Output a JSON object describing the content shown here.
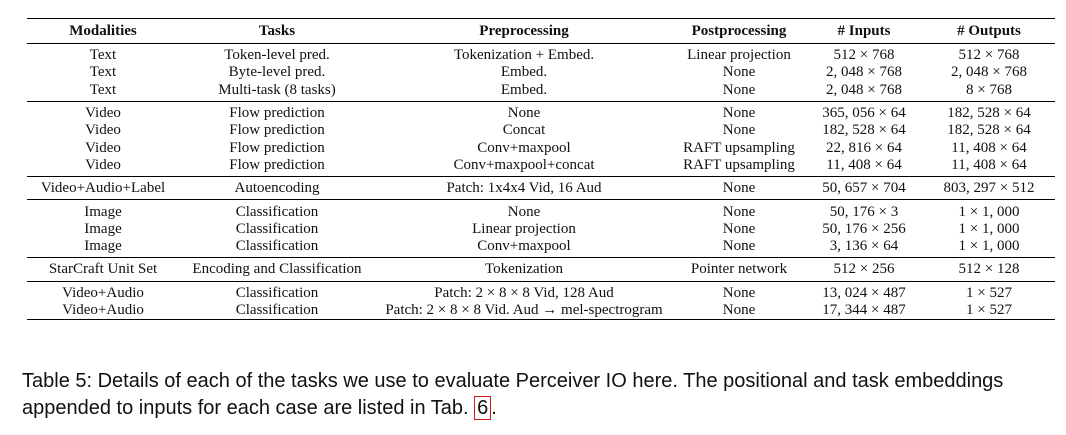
{
  "table": {
    "headers": [
      "Modalities",
      "Tasks",
      "Preprocessing",
      "Postprocessing",
      "# Inputs",
      "# Outputs"
    ],
    "groups": [
      [
        [
          "Text",
          "Token-level pred.",
          "Tokenization + Embed.",
          "Linear projection",
          "512 × 768",
          "512 × 768"
        ],
        [
          "Text",
          "Byte-level pred.",
          "Embed.",
          "None",
          "2, 048 × 768",
          "2, 048 × 768"
        ],
        [
          "Text",
          "Multi-task (8 tasks)",
          "Embed.",
          "None",
          "2, 048 × 768",
          "8 × 768"
        ]
      ],
      [
        [
          "Video",
          "Flow prediction",
          "None",
          "None",
          "365, 056 × 64",
          "182, 528 × 64"
        ],
        [
          "Video",
          "Flow prediction",
          "Concat",
          "None",
          "182, 528 × 64",
          "182, 528 × 64"
        ],
        [
          "Video",
          "Flow prediction",
          "Conv+maxpool",
          "RAFT upsampling",
          "22, 816 × 64",
          "11, 408 × 64"
        ],
        [
          "Video",
          "Flow prediction",
          "Conv+maxpool+concat",
          "RAFT upsampling",
          "11, 408 × 64",
          "11, 408 × 64"
        ]
      ],
      [
        [
          "Video+Audio+Label",
          "Autoencoding",
          "Patch: 1x4x4 Vid, 16 Aud",
          "None",
          "50, 657 × 704",
          "803, 297 × 512"
        ]
      ],
      [
        [
          "Image",
          "Classification",
          "None",
          "None",
          "50, 176 × 3",
          "1 × 1, 000"
        ],
        [
          "Image",
          "Classification",
          "Linear projection",
          "None",
          "50, 176 × 256",
          "1 × 1, 000"
        ],
        [
          "Image",
          "Classification",
          "Conv+maxpool",
          "None",
          "3, 136 × 64",
          "1 × 1, 000"
        ]
      ],
      [
        [
          "StarCraft Unit Set",
          "Encoding and Classification",
          "Tokenization",
          "Pointer network",
          "512 × 256",
          "512 × 128"
        ]
      ],
      [
        [
          "Video+Audio",
          "Classification",
          "Patch: 2 × 8 × 8 Vid, 128 Aud",
          "None",
          "13, 024 × 487",
          "1 × 527"
        ],
        [
          "Video+Audio",
          "Classification",
          "Patch: 2 × 8 × 8 Vid. Aud → mel-spectrogram",
          "None",
          "17, 344 × 487",
          "1 × 527"
        ]
      ]
    ]
  },
  "caption": {
    "prefix": "Table 5:  Details of each of the tasks we use to evaluate Perceiver IO here. The positional and task embeddings appended to inputs for each case are listed in Tab. ",
    "ref": "6",
    "suffix": "."
  }
}
